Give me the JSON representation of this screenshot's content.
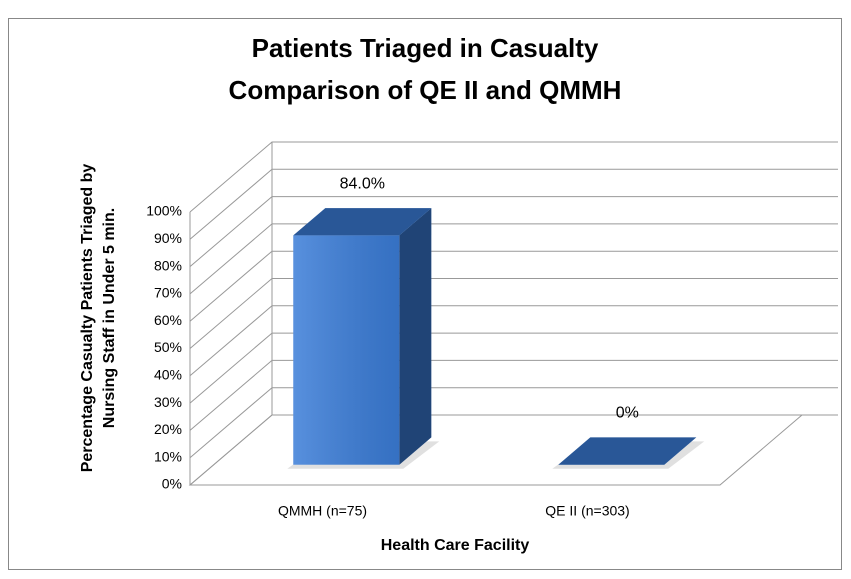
{
  "chart_data": {
    "type": "bar3d",
    "title": [
      "Patients Triaged in Casualty",
      "Comparison of QE II and QMMH"
    ],
    "y_axis_label": [
      "Percentage Casualty Patients Triaged by",
      "Nursing Staff in Under 5 min."
    ],
    "x_axis_label": "Health Care Facility",
    "categories": [
      "QMMH (n=75)",
      "QE II (n=303)"
    ],
    "values": [
      84,
      0
    ],
    "value_labels": [
      "84.0%",
      "0%"
    ],
    "color": "#3b7dd8",
    "ylim": [
      0,
      100
    ],
    "yticks": [
      {
        "value": 0,
        "label": "0%"
      },
      {
        "value": 10,
        "label": "10%"
      },
      {
        "value": 20,
        "label": "20%"
      },
      {
        "value": 30,
        "label": "30%"
      },
      {
        "value": 40,
        "label": "40%"
      },
      {
        "value": 50,
        "label": "50%"
      },
      {
        "value": 60,
        "label": "60%"
      },
      {
        "value": 70,
        "label": "70%"
      },
      {
        "value": 80,
        "label": "80%"
      },
      {
        "value": 90,
        "label": "90%"
      },
      {
        "value": 100,
        "label": "100%"
      }
    ],
    "grid": true
  }
}
